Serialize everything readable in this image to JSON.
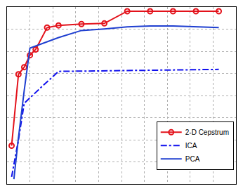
{
  "chart_data": {
    "type": "line",
    "xlim": [
      0,
      10
    ],
    "xticks": [
      0,
      1,
      2,
      3,
      4,
      5,
      6,
      7,
      8,
      9,
      10
    ],
    "ylim": [
      0,
      8
    ],
    "yticks": [
      0,
      1,
      2,
      3,
      4,
      5,
      6,
      7,
      8
    ],
    "grid": true,
    "tick_labels": false,
    "legend": "lower right",
    "series": [
      {
        "name": "2-D Cepstrum",
        "color": "#e3121b",
        "marker": "circle",
        "line_style": "solid",
        "x": [
          0.2,
          0.5,
          0.75,
          1.0,
          1.25,
          1.75,
          2.25,
          3.25,
          4.25,
          5.25,
          6.25,
          7.25,
          8.25,
          9.25
        ],
        "values": [
          1.73,
          4.96,
          5.28,
          5.82,
          6.08,
          7.07,
          7.17,
          7.23,
          7.26,
          7.81,
          7.81,
          7.81,
          7.81,
          7.81
        ]
      },
      {
        "name": "ICA",
        "color": "#1010ee",
        "line_style": "dashdot",
        "x": [
          0.2,
          0.5,
          0.75,
          1.0,
          1.5,
          2.25,
          4.25,
          9.25
        ],
        "values": [
          0.32,
          2.0,
          3.65,
          3.9,
          4.38,
          5.09,
          5.12,
          5.18
        ]
      },
      {
        "name": "PCA",
        "color": "#1f3fd0",
        "line_style": "solid",
        "x": [
          0.3,
          0.5,
          0.75,
          1.0,
          2.25,
          3.25,
          4.25,
          5.25,
          6.25,
          7.25,
          9.25
        ],
        "values": [
          0.22,
          2.1,
          4.22,
          6.14,
          6.62,
          6.94,
          7.01,
          7.1,
          7.14,
          7.14,
          7.07
        ]
      }
    ]
  }
}
